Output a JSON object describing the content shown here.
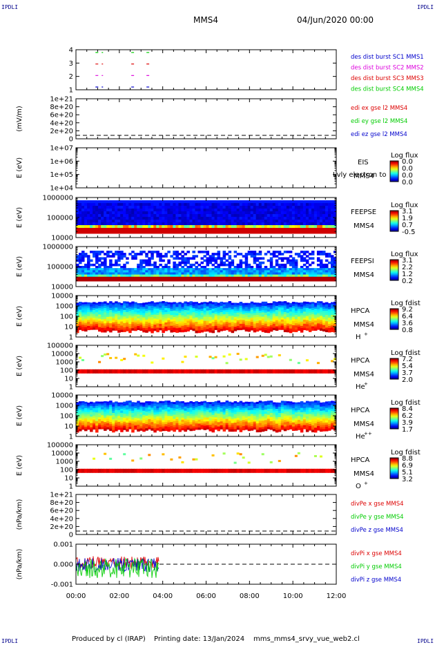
{
  "header": {
    "corner_left": "IPDLI",
    "corner_right": "IPDLI",
    "spacecraft": "MMS4",
    "datetime": "04/Jun/2020 00:00",
    "corner_bl": "IPDLI",
    "corner_br": "IPDLI"
  },
  "footer": {
    "produced": "Produced by cl (IRAP)",
    "printing": "Printing date: 13/Jan/2024",
    "file": "mms_mms4_srvy_vue_web2.cl"
  },
  "colors": {
    "mms1": "#008000",
    "mms2": "#cc0000",
    "mms3": "#cc00cc",
    "mms4": "#0000cc",
    "red": "#dd0000",
    "green": "#00cc00",
    "blue": "#0000cc",
    "magenta": "#dd00dd"
  },
  "chart_data": {
    "type": "multi-panel time series",
    "x_ticks": [
      "00:00",
      "02:00",
      "04:00",
      "06:00",
      "08:00",
      "10:00",
      "12:00"
    ],
    "x_range_hours": [
      0,
      12
    ],
    "panels": [
      {
        "id": "burst",
        "type": "bar",
        "ylabel": "",
        "ticks": [
          "4",
          "3",
          "2",
          "1"
        ],
        "legend": [
          {
            "text": "des dist burst SC1 MMS1",
            "color": "#0000cc"
          },
          {
            "text": "des dist burst SC2 MMS2",
            "color": "#dd00dd"
          },
          {
            "text": "des dist burst SC3 MMS3",
            "color": "#dd0000"
          },
          {
            "text": "des dist burst SC4 MMS4",
            "color": "#00cc00"
          }
        ],
        "intervals": [
          {
            "sc": 4,
            "color": "#00cc00",
            "segments": [
              [
                0.9,
                1.25
              ],
              [
                2.55,
                2.75
              ],
              [
                3.25,
                3.4
              ]
            ]
          },
          {
            "sc": 3,
            "color": "#dd0000",
            "segments": [
              [
                0.9,
                1.25
              ],
              [
                2.55,
                2.75
              ],
              [
                3.25,
                3.4
              ]
            ]
          },
          {
            "sc": 2,
            "color": "#dd00dd",
            "segments": [
              [
                0.9,
                1.25
              ],
              [
                2.55,
                2.75
              ],
              [
                3.25,
                3.4
              ]
            ]
          },
          {
            "sc": 1,
            "color": "#0000cc",
            "segments": [
              [
                0.9,
                1.25
              ],
              [
                2.55,
                2.75
              ],
              [
                3.25,
                3.4
              ]
            ]
          }
        ]
      },
      {
        "id": "edi",
        "type": "line",
        "ylabel": "(mV/m)",
        "ticks": [
          "1e+21",
          "8e+20",
          "6e+20",
          "4e+20",
          "2e+20",
          "0"
        ],
        "legend": [
          {
            "text": "edi ex gse l2 MMS4",
            "color": "#dd0000"
          },
          {
            "text": "edi ey gse l2 MMS4",
            "color": "#00cc00"
          },
          {
            "text": "edi ez gse l2 MMS4",
            "color": "#0000cc"
          }
        ]
      },
      {
        "id": "eis",
        "type": "heatmap",
        "ylabel": "E (eV)",
        "ticks": [
          "1e+07",
          "1e+06",
          "1e+05",
          "1e+04"
        ],
        "inst": "EIS",
        "inst2": "MMS4",
        "overlay": "Lvly electron to",
        "cb_title": "Log flux",
        "cb_ticks": [
          "0.0",
          "0.0",
          "0.0",
          "0.0"
        ]
      },
      {
        "id": "feepse",
        "type": "heatmap",
        "ylabel": "E (eV)",
        "ticks": [
          "1000000",
          "100000",
          "10000"
        ],
        "inst": "FEEPSE",
        "inst2": "MMS4",
        "cb_title": "Log flux",
        "cb_ticks": [
          "3.1",
          "1.9",
          "0.7",
          "-0.5"
        ]
      },
      {
        "id": "feepsi",
        "type": "heatmap",
        "ylabel": "E (eV)",
        "ticks": [
          "1000000",
          "100000",
          "10000"
        ],
        "inst": "FEEPSI",
        "inst2": "MMS4",
        "cb_title": "Log flux",
        "cb_ticks": [
          "3.1",
          "2.2",
          "1.2",
          "0.2"
        ]
      },
      {
        "id": "hpca_h",
        "type": "heatmap",
        "ylabel": "E (eV)",
        "ticks": [
          "10000",
          "1000",
          "100",
          "10",
          "1"
        ],
        "inst": "HPCA",
        "inst2": "MMS4",
        "species": "H",
        "charge": "+",
        "cb_title": "Log fdist",
        "cb_ticks": [
          "9.2",
          "6.4",
          "3.6",
          "0.8"
        ]
      },
      {
        "id": "hpca_he1",
        "type": "heatmap",
        "ylabel": "E (eV)",
        "ticks": [
          "100000",
          "10000",
          "1000",
          "100",
          "10",
          "1"
        ],
        "inst": "HPCA",
        "inst2": "MMS4",
        "species": "He",
        "charge": "+",
        "cb_title": "Log fdist",
        "cb_ticks": [
          "7.2",
          "5.4",
          "3.7",
          "2.0"
        ]
      },
      {
        "id": "hpca_he2",
        "type": "heatmap",
        "ylabel": "E (eV)",
        "ticks": [
          "10000",
          "1000",
          "100",
          "10",
          "1"
        ],
        "inst": "HPCA",
        "inst2": "MMS4",
        "species": "He",
        "charge": "++",
        "cb_title": "Log fdist",
        "cb_ticks": [
          "8.4",
          "6.2",
          "3.9",
          "1.7"
        ]
      },
      {
        "id": "hpca_o",
        "type": "heatmap",
        "ylabel": "E (eV)",
        "ticks": [
          "100000",
          "10000",
          "1000",
          "100",
          "10",
          "1"
        ],
        "inst": "HPCA",
        "inst2": "MMS4",
        "species": "O",
        "charge": "+",
        "cb_title": "Log fdist",
        "cb_ticks": [
          "8.8",
          "6.9",
          "5.1",
          "3.2"
        ]
      },
      {
        "id": "divpe",
        "type": "line",
        "ylabel": "(nPa/km)",
        "ticks": [
          "1e+21",
          "8e+20",
          "6e+20",
          "4e+20",
          "2e+20",
          "0"
        ],
        "legend": [
          {
            "text": "divPe x gse MMS4",
            "color": "#dd0000"
          },
          {
            "text": "divPe y gse MMS4",
            "color": "#00cc00"
          },
          {
            "text": "divPe z gse MMS4",
            "color": "#0000cc"
          }
        ]
      },
      {
        "id": "divpi",
        "type": "line",
        "ylabel": "(nPa/km)",
        "ticks": [
          "0.001",
          "0.000",
          "-0.001"
        ],
        "legend": [
          {
            "text": "divPi x gse MMS4",
            "color": "#dd0000"
          },
          {
            "text": "divPi y gse MMS4",
            "color": "#00cc00"
          },
          {
            "text": "divPi z gse MMS4",
            "color": "#0000cc"
          }
        ],
        "data_end_hour": 3.85
      }
    ]
  }
}
